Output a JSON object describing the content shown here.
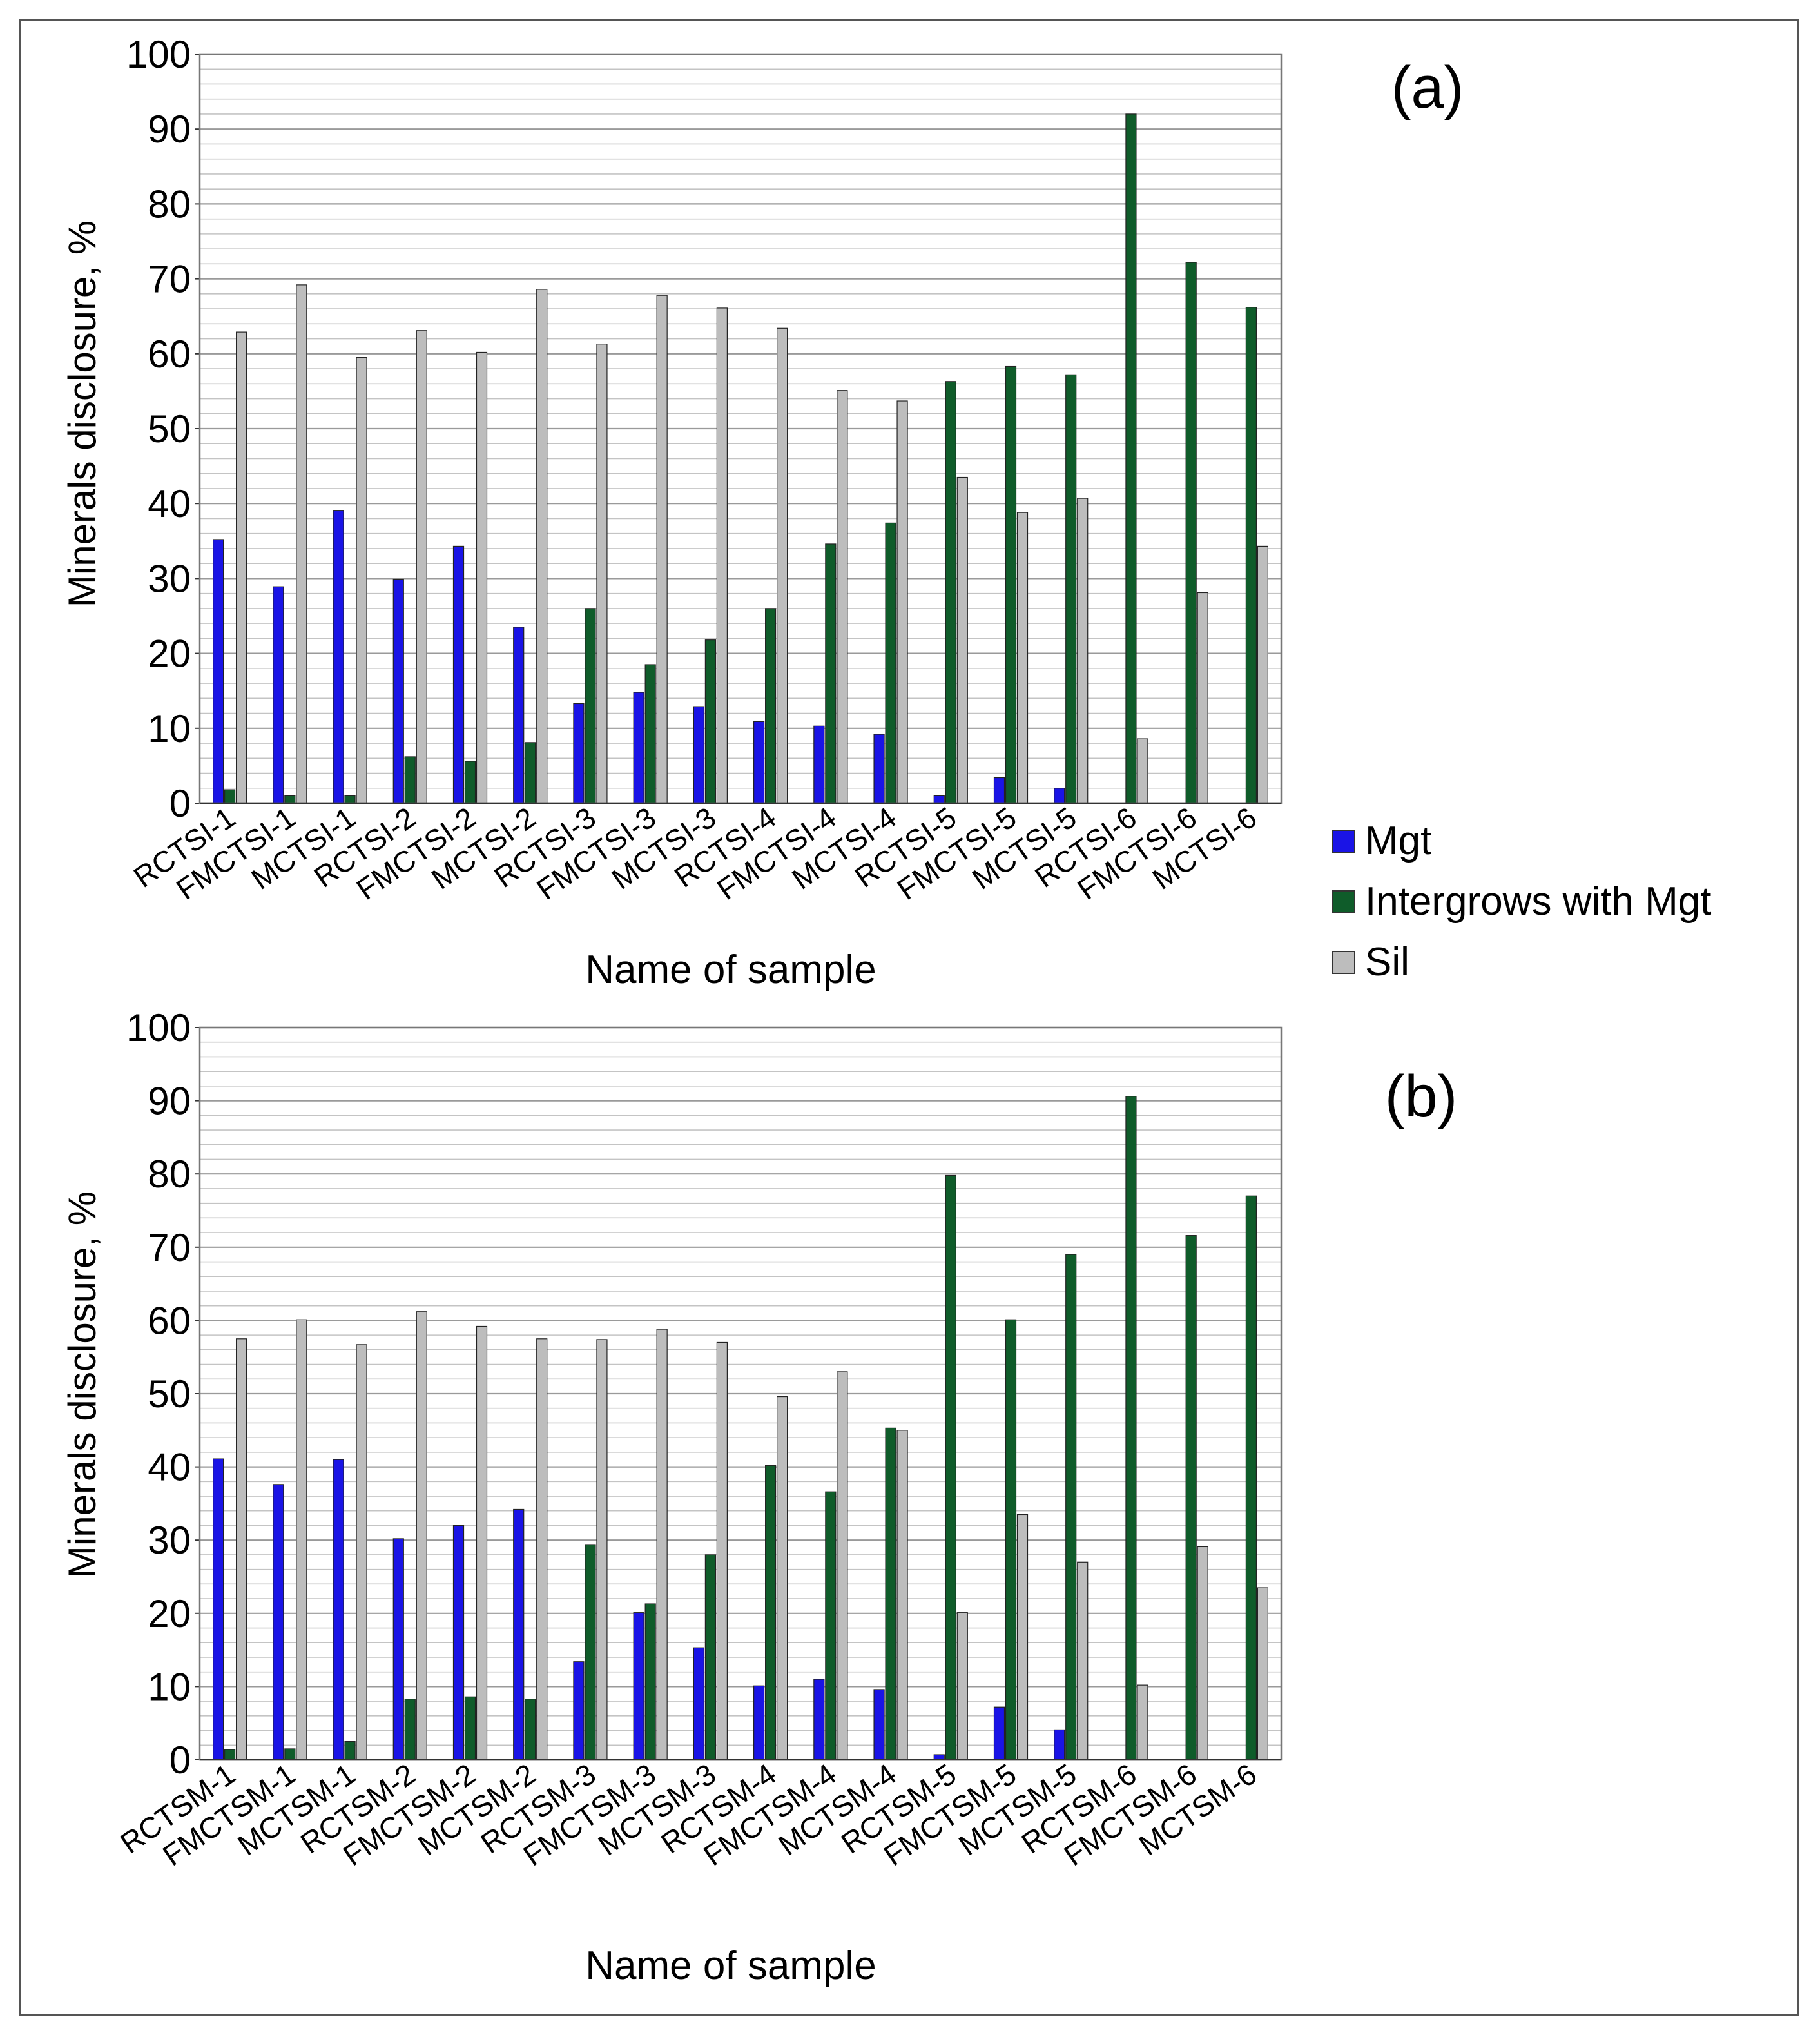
{
  "figure": {
    "legend": [
      {
        "label": "Mgt",
        "color": "#1a14e6"
      },
      {
        "label": "Intergrows with Mgt",
        "color": "#0f5c2a"
      },
      {
        "label": "Sil",
        "color": "#bdbdbd"
      }
    ]
  },
  "chart_data": [
    {
      "type": "bar",
      "panel_label": "(a)",
      "xlabel": "Name of sample",
      "ylabel": "Minerals disclosure, %",
      "ylim": [
        0,
        100
      ],
      "yticks": [
        0,
        10,
        20,
        30,
        40,
        50,
        60,
        70,
        80,
        90,
        100
      ],
      "grid": true,
      "legend_position": "right",
      "categories": [
        "RCTSI-1",
        "FMCTSI-1",
        "MCTSI-1",
        "RCTSI-2",
        "FMCTSI-2",
        "MCTSI-2",
        "RCTSI-3",
        "FMCTSI-3",
        "MCTSI-3",
        "RCTSI-4",
        "FMCTSI-4",
        "MCTSI-4",
        "RCTSI-5",
        "FMCTSI-5",
        "MCTSI-5",
        "RCTSI-6",
        "FMCTSI-6",
        "MCTSI-6"
      ],
      "series": [
        {
          "name": "Mgt",
          "values": [
            35.2,
            28.9,
            39.1,
            29.9,
            34.3,
            23.5,
            13.3,
            14.8,
            12.9,
            10.9,
            10.3,
            9.2,
            1.0,
            3.4,
            2.0,
            0,
            0,
            0
          ]
        },
        {
          "name": "Intergrows with Mgt",
          "values": [
            1.8,
            1.0,
            1.0,
            6.2,
            5.6,
            8.1,
            26.0,
            18.5,
            21.8,
            26.0,
            34.6,
            37.4,
            56.3,
            58.3,
            57.2,
            92.0,
            72.2,
            66.2
          ]
        },
        {
          "name": "Sil",
          "values": [
            62.9,
            69.2,
            59.5,
            63.1,
            60.2,
            68.6,
            61.3,
            67.8,
            66.1,
            63.4,
            55.1,
            53.7,
            43.5,
            38.8,
            40.7,
            8.6,
            28.1,
            34.3
          ]
        }
      ]
    },
    {
      "type": "bar",
      "panel_label": "(b)",
      "xlabel": "Name of sample",
      "ylabel": "Minerals disclosure, %",
      "ylim": [
        0,
        100
      ],
      "yticks": [
        0,
        10,
        20,
        30,
        40,
        50,
        60,
        70,
        80,
        90,
        100
      ],
      "grid": true,
      "legend_position": "none",
      "categories": [
        "RCTSM-1",
        "FMCTSM-1",
        "MCTSM-1",
        "RCTSM-2",
        "FMCTSM-2",
        "MCTSM-2",
        "RCTSM-3",
        "FMCTSM-3",
        "MCTSM-3",
        "RCTSM-4",
        "FMCTSM-4",
        "MCTSM-4",
        "RCTSM-5",
        "FMCTSM-5",
        "MCTSM-5",
        "RCTSM-6",
        "FMCTSM-6",
        "MCTSM-6"
      ],
      "series": [
        {
          "name": "Mgt",
          "values": [
            41.1,
            37.6,
            41.0,
            30.2,
            32.0,
            34.2,
            13.4,
            20.1,
            15.3,
            10.1,
            11.0,
            9.6,
            0.7,
            7.2,
            4.1,
            0,
            0,
            0
          ]
        },
        {
          "name": "Intergrows with Mgt",
          "values": [
            1.4,
            1.5,
            2.5,
            8.3,
            8.6,
            8.3,
            29.4,
            21.3,
            28.0,
            40.2,
            36.6,
            45.3,
            79.8,
            60.1,
            69.0,
            90.6,
            71.6,
            77.0
          ]
        },
        {
          "name": "Sil",
          "values": [
            57.5,
            60.1,
            56.7,
            61.2,
            59.2,
            57.5,
            57.4,
            58.8,
            57.0,
            49.6,
            53.0,
            45.0,
            20.1,
            33.5,
            27.0,
            10.2,
            29.1,
            23.5
          ]
        }
      ]
    }
  ]
}
